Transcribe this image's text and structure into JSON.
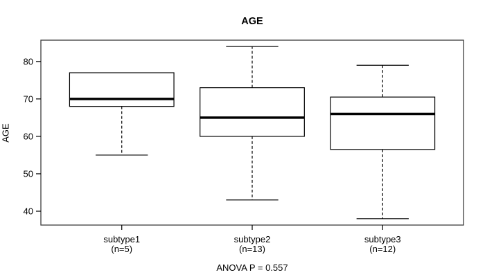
{
  "chart_data": {
    "type": "boxplot",
    "title": "AGE",
    "xlabel": "",
    "ylabel": "AGE",
    "annotation": "ANOVA P = 0.557",
    "ylim": [
      36.3,
      85.7
    ],
    "yticks": [
      40,
      50,
      60,
      70,
      80
    ],
    "grid": false,
    "legend": "none",
    "categories": [
      "subtype1",
      "subtype2",
      "subtype3"
    ],
    "category_sublabels": [
      "(n=5)",
      "(n=13)",
      "(n=12)"
    ],
    "series": [
      {
        "name": "subtype1",
        "label": "subtype1",
        "sublabel": "(n=5)",
        "n": 5,
        "whisker_low": 55,
        "q1": 68,
        "median": 70,
        "q3": 77,
        "whisker_high": 77
      },
      {
        "name": "subtype2",
        "label": "subtype2",
        "sublabel": "(n=13)",
        "n": 13,
        "whisker_low": 43,
        "q1": 60,
        "median": 65,
        "q3": 73,
        "whisker_high": 84
      },
      {
        "name": "subtype3",
        "label": "subtype3",
        "sublabel": "(n=12)",
        "n": 12,
        "whisker_low": 38,
        "q1": 56.5,
        "median": 66,
        "q3": 70.5,
        "whisker_high": 79
      }
    ]
  },
  "colors": {
    "line": "#000000",
    "frame": "#3c3c3c",
    "box_fill": "#ffffff",
    "background": "#ffffff"
  }
}
